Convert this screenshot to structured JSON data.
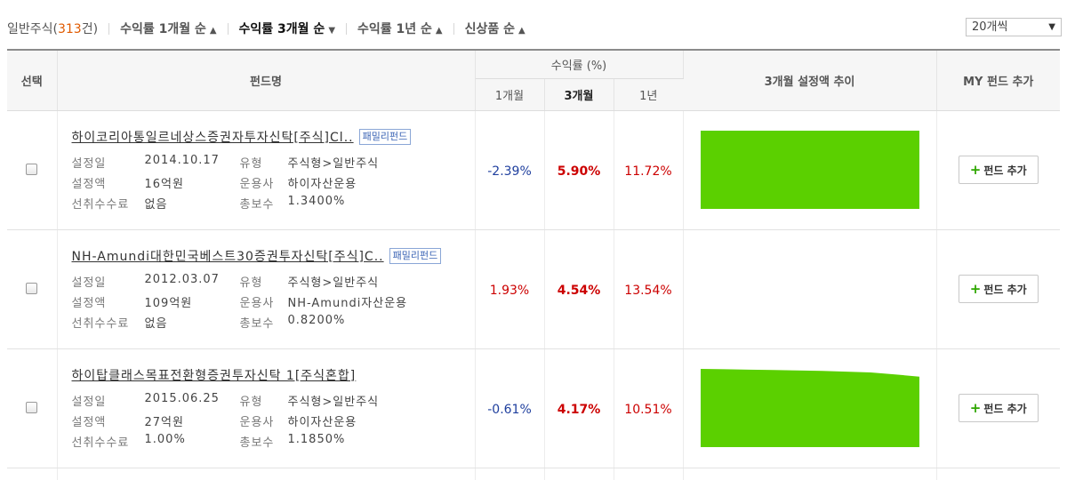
{
  "toolbar": {
    "total_label": "일반주식(",
    "total_count": "313",
    "total_suffix": "건)",
    "sorts": [
      {
        "label": "수익률 1개월 순",
        "caret": "^"
      },
      {
        "label": "수익률 3개월 순",
        "caret": "v"
      },
      {
        "label": "수익률 1년 순",
        "caret": "^"
      },
      {
        "label": "신상품 순",
        "caret": "^"
      }
    ],
    "page_size": "20개씩",
    "page_size_caret": "▼"
  },
  "table": {
    "headers": {
      "select": "선택",
      "fund_name": "펀드명",
      "returns_group": "수익률 (%)",
      "ret_1m": "1개월",
      "ret_3m": "3개월",
      "ret_1y": "1년",
      "aum_trend": "3개월 설정액 추이",
      "my_fund": "MY 펀드 추가"
    },
    "info_labels": {
      "set_date": "설정일",
      "type": "유형",
      "amount": "설정액",
      "company": "운용사",
      "front_fee": "선취수수료",
      "total_fee": "총보수"
    },
    "add_button": {
      "plus": "+",
      "label": "펀드 추가"
    },
    "rows": [
      {
        "name": "하이코리아통일르네상스증권자투자신탁[주식]Cl..",
        "family": "패밀리펀드",
        "set_date": "2014.10.17",
        "type": "주식형>일반주식",
        "amount": "16억원",
        "company": "하이자산운용",
        "front_fee": "없음",
        "total_fee": "1.3400%",
        "ret_1m": "-2.39%",
        "ret_3m": "5.90%",
        "ret_1y": "11.72%",
        "trend": [
          1,
          1,
          1,
          1,
          1,
          1,
          1,
          1,
          1,
          1
        ]
      },
      {
        "name": "NH-Amundi대한민국베스트30증권투자신탁[주식]C..",
        "family": "패밀리펀드",
        "set_date": "2012.03.07",
        "type": "주식형>일반주식",
        "amount": "109억원",
        "company": "NH-Amundi자산운용",
        "front_fee": "없음",
        "total_fee": "0.8200%",
        "ret_1m": "1.93%",
        "ret_3m": "4.54%",
        "ret_1y": "13.54%",
        "trend": []
      },
      {
        "name": "하이탑클래스목표전환형증권투자신탁 1[주식혼합]",
        "family": "",
        "set_date": "2015.06.25",
        "type": "주식형>일반주식",
        "amount": "27억원",
        "company": "하이자산운용",
        "front_fee": "1.00%",
        "total_fee": "1.1850%",
        "ret_1m": "-0.61%",
        "ret_3m": "4.17%",
        "ret_1y": "10.51%",
        "trend": [
          1,
          0.995,
          0.99,
          0.985,
          0.98,
          0.975,
          0.965,
          0.955,
          0.93,
          0.9
        ]
      }
    ],
    "trend_color": "#5bd000"
  }
}
